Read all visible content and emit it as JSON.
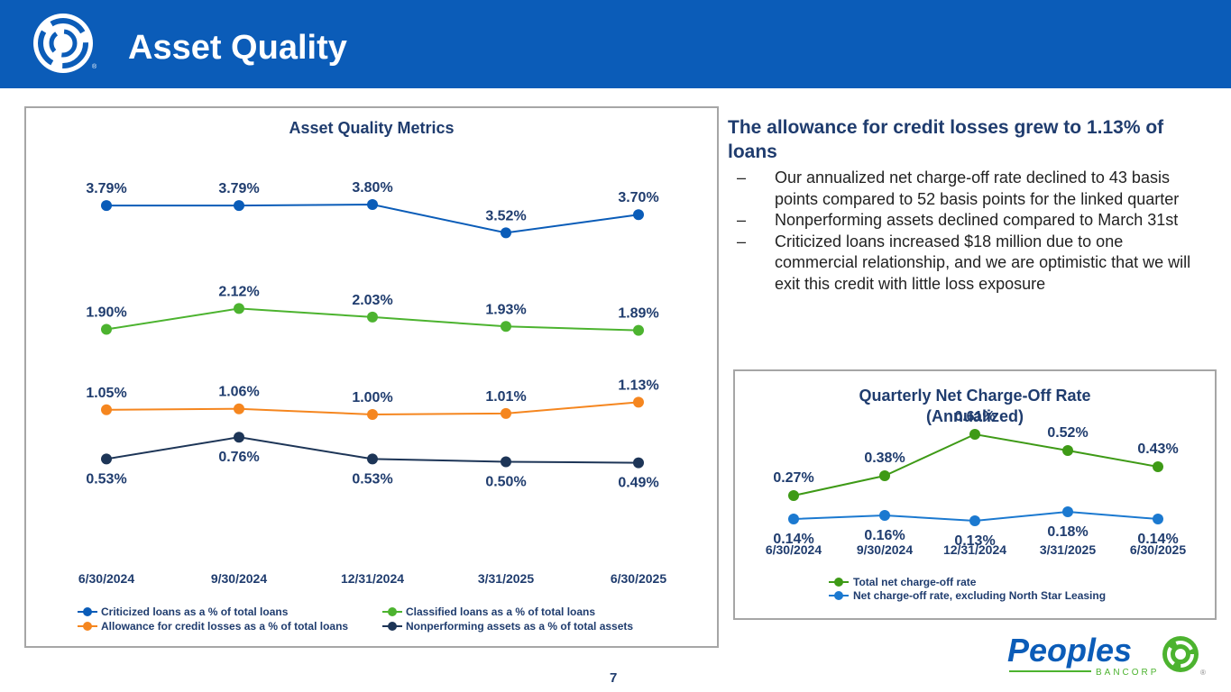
{
  "header": {
    "title": "Asset Quality"
  },
  "colors": {
    "header_bg": "#0b5cb8",
    "criticized": "#0a5cb8",
    "classified": "#4cb32f",
    "allowance": "#f5861f",
    "nonperforming": "#1d3557",
    "nco_total": "#3e9a16",
    "nco_excl": "#1b79d0",
    "brand_blue": "#0b5cb8",
    "brand_green": "#4cb32f"
  },
  "chart_data": [
    {
      "type": "line",
      "title": "Asset Quality Metrics",
      "categories": [
        "6/30/2024",
        "9/30/2024",
        "12/31/2024",
        "3/31/2025",
        "6/30/2025"
      ],
      "series": [
        {
          "name": "Criticized loans as a % of total loans",
          "values": [
            3.79,
            3.79,
            3.8,
            3.52,
            3.7
          ],
          "labels": [
            "3.79%",
            "3.79%",
            "3.80%",
            "3.52%",
            "3.70%"
          ]
        },
        {
          "name": "Classified loans as a % of total loans",
          "values": [
            1.9,
            2.12,
            2.03,
            1.93,
            1.89
          ],
          "labels": [
            "1.90%",
            "2.12%",
            "2.03%",
            "1.93%",
            "1.89%"
          ]
        },
        {
          "name": "Allowance for credit losses as a % of total loans",
          "values": [
            1.05,
            1.06,
            1.0,
            1.01,
            1.13
          ],
          "labels": [
            "1.05%",
            "1.06%",
            "1.00%",
            "1.01%",
            "1.13%"
          ]
        },
        {
          "name": "Nonperforming assets as a % of total assets",
          "values": [
            0.53,
            0.76,
            0.53,
            0.5,
            0.49
          ],
          "labels": [
            "0.53%",
            "0.76%",
            "0.53%",
            "0.50%",
            "0.49%"
          ]
        }
      ],
      "legend": "bottom",
      "grid": false
    },
    {
      "type": "line",
      "title": "Quarterly Net Charge-Off Rate (Annualized)",
      "title_lines": [
        "Quarterly Net Charge-Off Rate",
        "(Annualized)"
      ],
      "categories": [
        "6/30/2024",
        "9/30/2024",
        "12/31/2024",
        "3/31/2025",
        "6/30/2025"
      ],
      "series": [
        {
          "name": "Total net charge-off rate",
          "values": [
            0.27,
            0.38,
            0.61,
            0.52,
            0.43
          ],
          "labels": [
            "0.27%",
            "0.38%",
            "0.61%",
            "0.52%",
            "0.43%"
          ]
        },
        {
          "name": "Net charge-off rate, excluding North Star Leasing",
          "values": [
            0.14,
            0.16,
            0.13,
            0.18,
            0.14
          ],
          "labels": [
            "0.14%",
            "0.16%",
            "0.13%",
            "0.18%",
            "0.14%"
          ]
        }
      ],
      "legend": "bottom",
      "grid": false
    }
  ],
  "commentary": {
    "headline": "The allowance for credit losses grew to 1.13% of loans",
    "bullets": [
      "Our annualized net charge-off rate declined to 43 basis points compared to 52 basis points for the linked quarter",
      "Nonperforming assets declined compared to March 31st",
      "Criticized loans increased $18 million due to one commercial relationship, and we are optimistic that we will exit this credit with little loss exposure"
    ],
    "dash": "–"
  },
  "footer": {
    "page_number": "7"
  },
  "brand": {
    "name": "Peoples",
    "sub": "BANCORP",
    "registered": "®"
  }
}
